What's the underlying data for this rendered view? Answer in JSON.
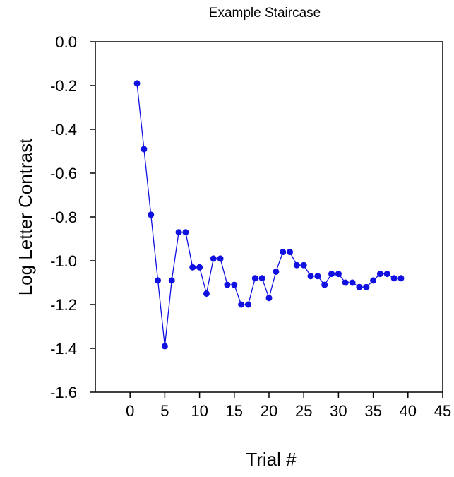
{
  "chart_data": {
    "type": "line",
    "title": "Example Staircase",
    "xlabel": "Trial #",
    "ylabel": "Log Letter Contrast",
    "xlim": [
      -5,
      45
    ],
    "ylim": [
      -1.6,
      0.0
    ],
    "xticks": [
      "0",
      "5",
      "10",
      "15",
      "20",
      "25",
      "30",
      "35",
      "40",
      "45"
    ],
    "yticks": [
      "0.0",
      "-0.2",
      "-0.4",
      "-0.6",
      "-0.8",
      "-1.0",
      "-1.2",
      "-1.4",
      "-1.6"
    ],
    "grid": false,
    "series": [
      {
        "color": "#1010e0",
        "x": [
          1,
          2,
          3,
          4,
          5,
          6,
          7,
          8,
          9,
          10,
          11,
          12,
          13,
          14,
          15,
          16,
          17,
          18,
          19,
          20,
          21,
          22,
          23,
          24,
          25,
          26,
          27,
          28,
          29,
          30,
          31,
          32,
          33,
          34,
          35,
          36,
          37,
          38,
          39
        ],
        "y": [
          -0.19,
          -0.49,
          -0.79,
          -1.09,
          -1.39,
          -1.09,
          -0.87,
          -0.87,
          -1.03,
          -1.03,
          -1.15,
          -0.99,
          -0.99,
          -1.11,
          -1.11,
          -1.2,
          -1.2,
          -1.08,
          -1.08,
          -1.17,
          -1.05,
          -0.96,
          -0.96,
          -1.02,
          -1.02,
          -1.07,
          -1.07,
          -1.11,
          -1.06,
          -1.06,
          -1.1,
          -1.1,
          -1.12,
          -1.12,
          -1.09,
          -1.06,
          -1.06,
          -1.08,
          -1.08
        ]
      }
    ]
  }
}
